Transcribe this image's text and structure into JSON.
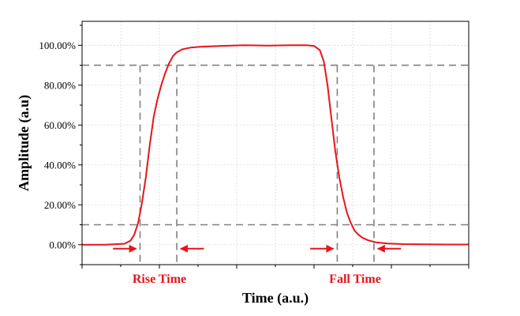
{
  "chart_data": {
    "type": "line",
    "xlabel": "Time (a.u.)",
    "ylabel": "Amplitude (a.u)",
    "xlim": [
      0,
      100
    ],
    "ylim": [
      -10,
      112
    ],
    "yticks": [
      0,
      20,
      40,
      60,
      80,
      100
    ],
    "ytick_labels": [
      "0.00%",
      "20.00%",
      "40.00%",
      "60.00%",
      "80.00%",
      "100.00%"
    ],
    "xticks": [
      0,
      20,
      40,
      60,
      80,
      100
    ],
    "grid": true,
    "series": [
      {
        "color": "#e8141b",
        "x": [
          0,
          6,
          11,
          12.5,
          13.5,
          14.5,
          15.5,
          16.5,
          17.5,
          18.5,
          19.5,
          20.5,
          21.5,
          22.5,
          23.5,
          24.5,
          26,
          28,
          31,
          36,
          42,
          48,
          54,
          58,
          60,
          61.5,
          62.5,
          63.5,
          64.5,
          65.5,
          66.5,
          67.5,
          68.5,
          69.5,
          70.5,
          71.5,
          72.5,
          74,
          76,
          79,
          83,
          88,
          94,
          100
        ],
        "y": [
          0,
          0,
          0.5,
          2,
          5,
          11,
          21,
          34,
          50,
          64,
          73,
          80,
          86,
          91,
          94.5,
          96.5,
          98,
          98.8,
          99.3,
          99.7,
          100,
          99.8,
          100,
          100,
          99.7,
          97.5,
          92,
          80,
          63,
          47,
          34,
          24,
          16,
          11,
          7,
          5,
          3.5,
          2.2,
          1.2,
          0.6,
          0.3,
          0.2,
          0.1,
          0.1
        ]
      }
    ],
    "thresholds_y": [
      10,
      90
    ],
    "markers_x": [
      15,
      24.5,
      66,
      75.5
    ],
    "annotations": [
      "Rise Time",
      "Fall Time"
    ],
    "arrows": [
      {
        "x_from": 8,
        "x_to": 14,
        "y": -2
      },
      {
        "x_from": 31.5,
        "x_to": 25.5,
        "y": -2
      },
      {
        "x_from": 59,
        "x_to": 65,
        "y": -2
      },
      {
        "x_from": 82.5,
        "x_to": 76.5,
        "y": -2
      }
    ],
    "annotation_color": "#e8141b",
    "threshold_color": "#808080"
  }
}
